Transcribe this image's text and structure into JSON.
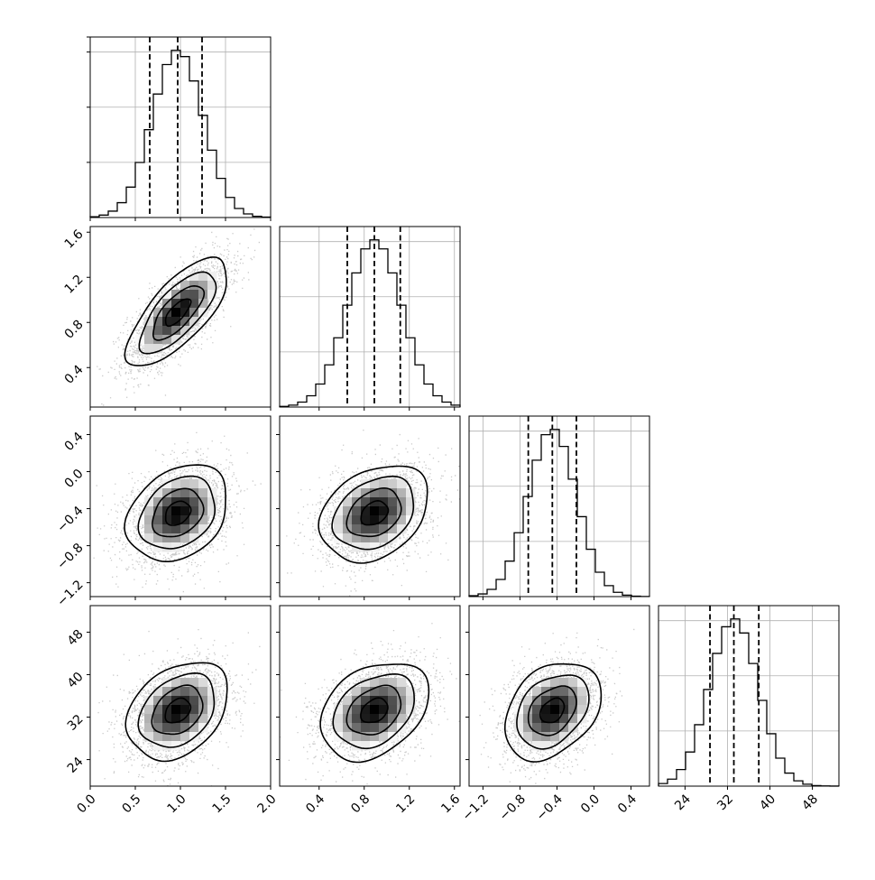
{
  "chart_data": {
    "type": "corner",
    "params": [
      {
        "mean": 0.97,
        "sd": 0.28,
        "range": [
          0.0,
          2.0
        ],
        "ticks": [
          0.0,
          0.5,
          1.0,
          1.5,
          2.0
        ],
        "tick_labels": [
          "0.0",
          "0.5",
          "1.0",
          "1.5",
          "2.0"
        ],
        "quantiles": [
          0.66,
          0.97,
          1.24
        ]
      },
      {
        "mean": 0.89,
        "sd": 0.24,
        "range": [
          0.05,
          1.65
        ],
        "ticks": [
          0.4,
          0.8,
          1.2,
          1.6
        ],
        "tick_labels": [
          "0.4",
          "0.8",
          "1.2",
          "1.6"
        ],
        "quantiles": [
          0.65,
          0.89,
          1.12
        ]
      },
      {
        "mean": -0.45,
        "sd": 0.26,
        "range": [
          -1.35,
          0.6
        ],
        "ticks": [
          -1.2,
          -0.8,
          -0.4,
          0.0,
          0.4
        ],
        "tick_labels": [
          "−1.2",
          "−0.8",
          "−0.4",
          "0.0",
          "0.4"
        ],
        "quantiles": [
          -0.71,
          -0.45,
          -0.19
        ]
      },
      {
        "mean": 33.2,
        "sd": 4.6,
        "range": [
          19.0,
          53.0
        ],
        "ticks": [
          24,
          32,
          40,
          48
        ],
        "tick_labels": [
          "24",
          "32",
          "40",
          "48"
        ],
        "quantiles": [
          28.7,
          33.2,
          37.9
        ]
      }
    ],
    "correlations": {
      "1-0": 0.72,
      "2-0": 0.28,
      "2-1": 0.3,
      "3-0": 0.32,
      "3-1": 0.32,
      "3-2": 0.33
    },
    "contour_levels_sigma": [
      0.5,
      1.0,
      1.5,
      2.0
    ],
    "histogram_bins": 20,
    "grid": true,
    "colors": {
      "points": "#9e9e9e",
      "contour": "#000000",
      "density": "#000000"
    }
  }
}
